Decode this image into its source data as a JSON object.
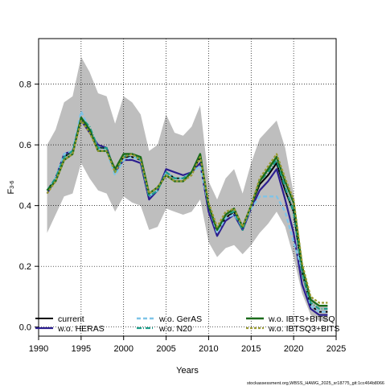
{
  "chart_data": {
    "type": "line",
    "title": "",
    "xlabel": "Years",
    "ylabel_main": "F",
    "ylabel_sub": "3-6",
    "xlim": [
      1990,
      2025
    ],
    "ylim": [
      -0.03,
      0.95
    ],
    "xticks": [
      1990,
      1995,
      2000,
      2005,
      2010,
      2015,
      2020,
      2025
    ],
    "yticks": [
      0.0,
      0.2,
      0.4,
      0.6,
      0.8
    ],
    "ytick_labels": [
      "0.0",
      "0.2",
      "0.4",
      "0.6",
      "0.8"
    ],
    "grid": true,
    "legend_position": "bottom",
    "x": [
      1991,
      1992,
      1993,
      1994,
      1995,
      1996,
      1997,
      1998,
      1999,
      2000,
      2001,
      2002,
      2003,
      2004,
      2005,
      2006,
      2007,
      2008,
      2009,
      2010,
      2011,
      2012,
      2013,
      2014,
      2015,
      2016,
      2017,
      2018,
      2019,
      2020,
      2021,
      2022,
      2023,
      2024
    ],
    "band": {
      "color": "#bebebe",
      "upper": [
        0.6,
        0.65,
        0.74,
        0.76,
        0.89,
        0.84,
        0.77,
        0.76,
        0.67,
        0.76,
        0.74,
        0.7,
        0.58,
        0.6,
        0.7,
        0.64,
        0.63,
        0.66,
        0.73,
        0.48,
        0.42,
        0.49,
        0.52,
        0.44,
        0.54,
        0.62,
        0.65,
        0.68,
        0.59,
        0.44,
        0.21,
        0.1,
        0.07,
        0.07
      ],
      "lower": [
        0.31,
        0.37,
        0.43,
        0.44,
        0.54,
        0.49,
        0.45,
        0.44,
        0.38,
        0.43,
        0.41,
        0.4,
        0.32,
        0.33,
        0.39,
        0.38,
        0.37,
        0.38,
        0.42,
        0.28,
        0.23,
        0.26,
        0.27,
        0.24,
        0.27,
        0.31,
        0.34,
        0.38,
        0.33,
        0.23,
        0.11,
        0.04,
        0.02,
        0.02
      ]
    },
    "series": [
      {
        "name": "current",
        "color": "#000000",
        "width": 2.0,
        "dash": "",
        "values": [
          0.45,
          0.49,
          0.56,
          0.58,
          0.68,
          0.65,
          0.59,
          0.59,
          0.51,
          0.56,
          0.56,
          0.55,
          0.43,
          0.45,
          0.51,
          0.49,
          0.49,
          0.51,
          0.56,
          0.4,
          0.32,
          0.36,
          0.38,
          0.32,
          0.4,
          0.47,
          0.5,
          0.54,
          0.45,
          0.38,
          0.18,
          0.07,
          0.05,
          0.05
        ]
      },
      {
        "name": "w.o. HERAS",
        "color": "#2b1d8f",
        "width": 2.2,
        "dash": "",
        "values": [
          0.44,
          0.49,
          0.57,
          0.58,
          0.68,
          0.64,
          0.6,
          0.59,
          0.51,
          0.55,
          0.55,
          0.54,
          0.42,
          0.45,
          0.52,
          0.51,
          0.5,
          0.51,
          0.54,
          0.38,
          0.3,
          0.35,
          0.37,
          0.32,
          0.39,
          0.45,
          0.48,
          0.52,
          0.42,
          0.31,
          0.14,
          0.06,
          0.04,
          0.04
        ]
      },
      {
        "name": "w.o. GerAS",
        "color": "#7fc4e8",
        "width": 2.4,
        "dash": "5,3",
        "values": [
          0.45,
          0.49,
          0.57,
          0.58,
          0.71,
          0.65,
          0.59,
          0.58,
          0.5,
          0.55,
          0.56,
          0.55,
          0.43,
          0.45,
          0.51,
          0.49,
          0.49,
          0.51,
          0.53,
          0.4,
          0.31,
          0.36,
          0.37,
          0.33,
          0.39,
          0.43,
          0.43,
          0.43,
          0.38,
          0.28,
          0.19,
          0.07,
          0.05,
          0.05
        ]
      },
      {
        "name": "w.o. N20",
        "color": "#1a9e8a",
        "width": 2.2,
        "dash": "6,2,1,2",
        "values": [
          0.45,
          0.49,
          0.56,
          0.58,
          0.69,
          0.66,
          0.59,
          0.59,
          0.51,
          0.56,
          0.57,
          0.55,
          0.43,
          0.45,
          0.51,
          0.49,
          0.49,
          0.51,
          0.57,
          0.4,
          0.32,
          0.37,
          0.38,
          0.32,
          0.4,
          0.48,
          0.51,
          0.55,
          0.46,
          0.38,
          0.18,
          0.08,
          0.06,
          0.06
        ]
      },
      {
        "name": "w.o. IBTS+BITSQ",
        "color": "#1a6b1a",
        "width": 2.4,
        "dash": "",
        "values": [
          0.45,
          0.48,
          0.55,
          0.57,
          0.69,
          0.65,
          0.58,
          0.58,
          0.52,
          0.57,
          0.57,
          0.56,
          0.44,
          0.46,
          0.5,
          0.48,
          0.48,
          0.51,
          0.57,
          0.4,
          0.32,
          0.37,
          0.39,
          0.33,
          0.4,
          0.48,
          0.52,
          0.56,
          0.48,
          0.41,
          0.2,
          0.09,
          0.07,
          0.07
        ]
      },
      {
        "name": "w.o. IBTSQ3+BITS",
        "color": "#9a9a30",
        "width": 2.2,
        "dash": "3,2",
        "values": [
          0.44,
          0.48,
          0.55,
          0.57,
          0.68,
          0.64,
          0.58,
          0.58,
          0.51,
          0.56,
          0.57,
          0.55,
          0.44,
          0.46,
          0.5,
          0.48,
          0.48,
          0.5,
          0.56,
          0.41,
          0.33,
          0.38,
          0.39,
          0.33,
          0.4,
          0.49,
          0.53,
          0.57,
          0.49,
          0.42,
          0.21,
          0.1,
          0.08,
          0.08
        ]
      }
    ]
  },
  "footer": "stockassessment.org,WBSS_HAWG_2025_sr18775_git:1cc464b8066"
}
